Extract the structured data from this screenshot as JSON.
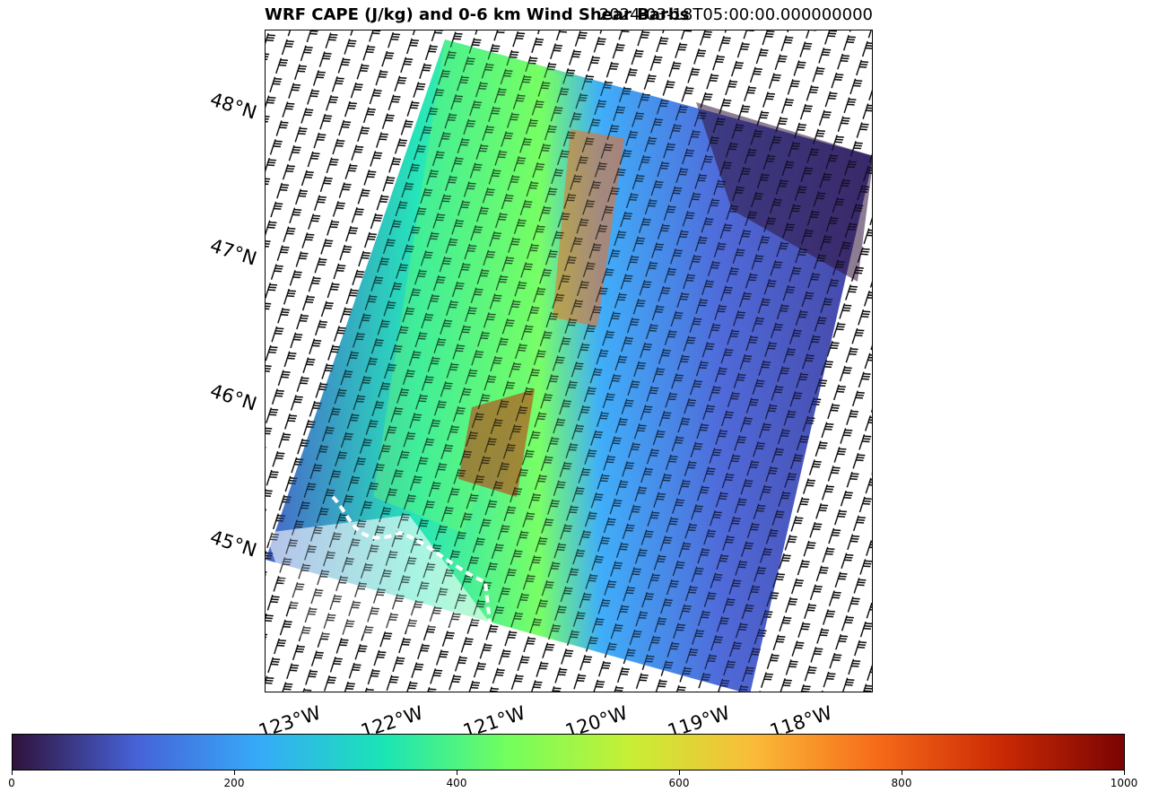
{
  "title": {
    "left": "WRF CAPE (J/kg) and 0-6 km Wind Shear Barbs",
    "right": "2024-03-18T05:00:00.000000000"
  },
  "map": {
    "lat_labels": [
      "48°N",
      "47°N",
      "46°N",
      "45°N"
    ],
    "lon_labels": [
      "123°W",
      "122°W",
      "121°W",
      "120°W",
      "119°W",
      "118°W"
    ]
  },
  "colorbar": {
    "min": 0,
    "max": 1000,
    "ticks": [
      "0",
      "200",
      "400",
      "600",
      "800",
      "1000"
    ],
    "colormap": "turbo",
    "stops": [
      "#30123b",
      "#4662d7",
      "#36aaf9",
      "#1ae4b6",
      "#72fe5e",
      "#c7ef34",
      "#fabb39",
      "#f66b19",
      "#cb2a04",
      "#7a0403"
    ]
  }
}
